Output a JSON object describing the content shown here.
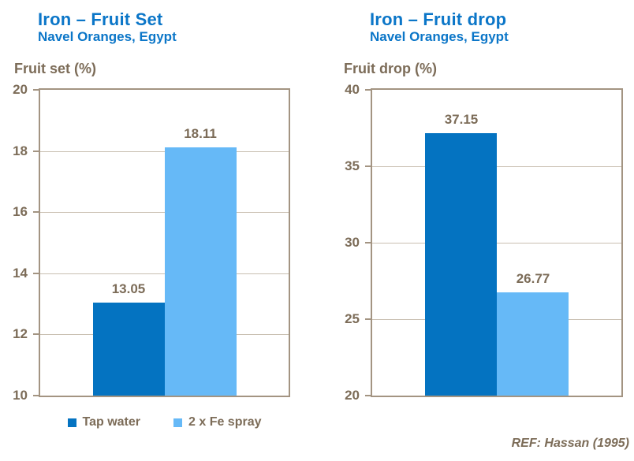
{
  "colors": {
    "title_blue": "#0b76c8",
    "text_brown": "#7c6c58",
    "axis_border": "#a39482",
    "gridline": "#c9bfb1",
    "bar_dark_blue": "#0473c1",
    "bar_light_blue": "#66b9f7"
  },
  "chart_data": [
    {
      "type": "bar",
      "title": "Iron – Fruit Set",
      "subtitle": "Navel Oranges, Egypt",
      "ylabel": "Fruit set (%)",
      "xlabel": "",
      "categories": [
        "Tap water",
        "2 x Fe spray"
      ],
      "values": [
        13.05,
        18.11
      ],
      "data_labels": [
        "13.05",
        "18.11"
      ],
      "ylim": [
        10,
        20
      ],
      "ytick_step": 2,
      "yticks": [
        10,
        12,
        14,
        16,
        18,
        20
      ],
      "grid": true,
      "legend_position": "bottom",
      "bar_colors": [
        "#0473c1",
        "#66b9f7"
      ]
    },
    {
      "type": "bar",
      "title": "Iron – Fruit drop",
      "subtitle": "Navel Oranges, Egypt",
      "ylabel": "Fruit drop (%)",
      "xlabel": "",
      "categories": [
        "Tap water",
        "2 x Fe spray"
      ],
      "values": [
        37.15,
        26.77
      ],
      "data_labels": [
        "37.15",
        "26.77"
      ],
      "ylim": [
        20,
        40
      ],
      "ytick_step": 5,
      "yticks": [
        20,
        25,
        30,
        35,
        40
      ],
      "grid": true,
      "legend_position": "none",
      "bar_colors": [
        "#0473c1",
        "#66b9f7"
      ]
    }
  ],
  "legend": {
    "items": [
      {
        "label": "Tap water",
        "color": "#0473c1"
      },
      {
        "label": "2 x Fe spray",
        "color": "#66b9f7"
      }
    ]
  },
  "reference": "REF: Hassan (1995)"
}
